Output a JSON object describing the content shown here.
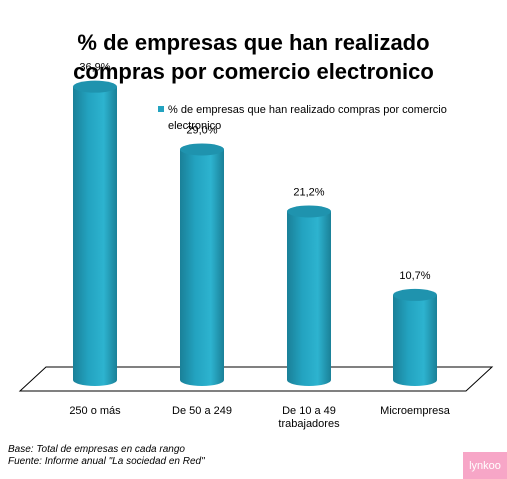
{
  "chart_data": {
    "type": "bar",
    "title": "% de empresas que han realizado compras por comercio electronico",
    "title_lines": [
      "% de empresas que han realizado",
      "compras por comercio electronico"
    ],
    "categories": [
      "250 o más",
      "De 50 a 249",
      "De 10 a 49 trabajadores",
      "Microempresa"
    ],
    "category_lines": [
      [
        "250 o más"
      ],
      [
        "De 50 a 249"
      ],
      [
        "De 10 a 49",
        "trabajadores"
      ],
      [
        "Microempresa"
      ]
    ],
    "series": [
      {
        "name": "% de empresas que han realizado compras por comercio electronico",
        "values": [
          36.9,
          29.0,
          21.2,
          10.7
        ],
        "value_labels": [
          "36,9%",
          "29,0%",
          "21,2%",
          "10,7%"
        ]
      }
    ],
    "legend_lines": [
      "% de empresas que han realizado compras por comercio",
      "electronico"
    ],
    "legend_position": "top-right",
    "grid": false,
    "ylim": [
      0,
      40
    ],
    "colors": {
      "bar": "#23a3c0",
      "bar_dark": "#1a8098",
      "bar_top": "#1f93ae"
    }
  },
  "footnote": {
    "base": "Base: Total de empresas en cada rango",
    "source": "Fuente:  Informe anual \"La sociedad en Red\""
  },
  "brand": {
    "label": "lynkoo"
  }
}
